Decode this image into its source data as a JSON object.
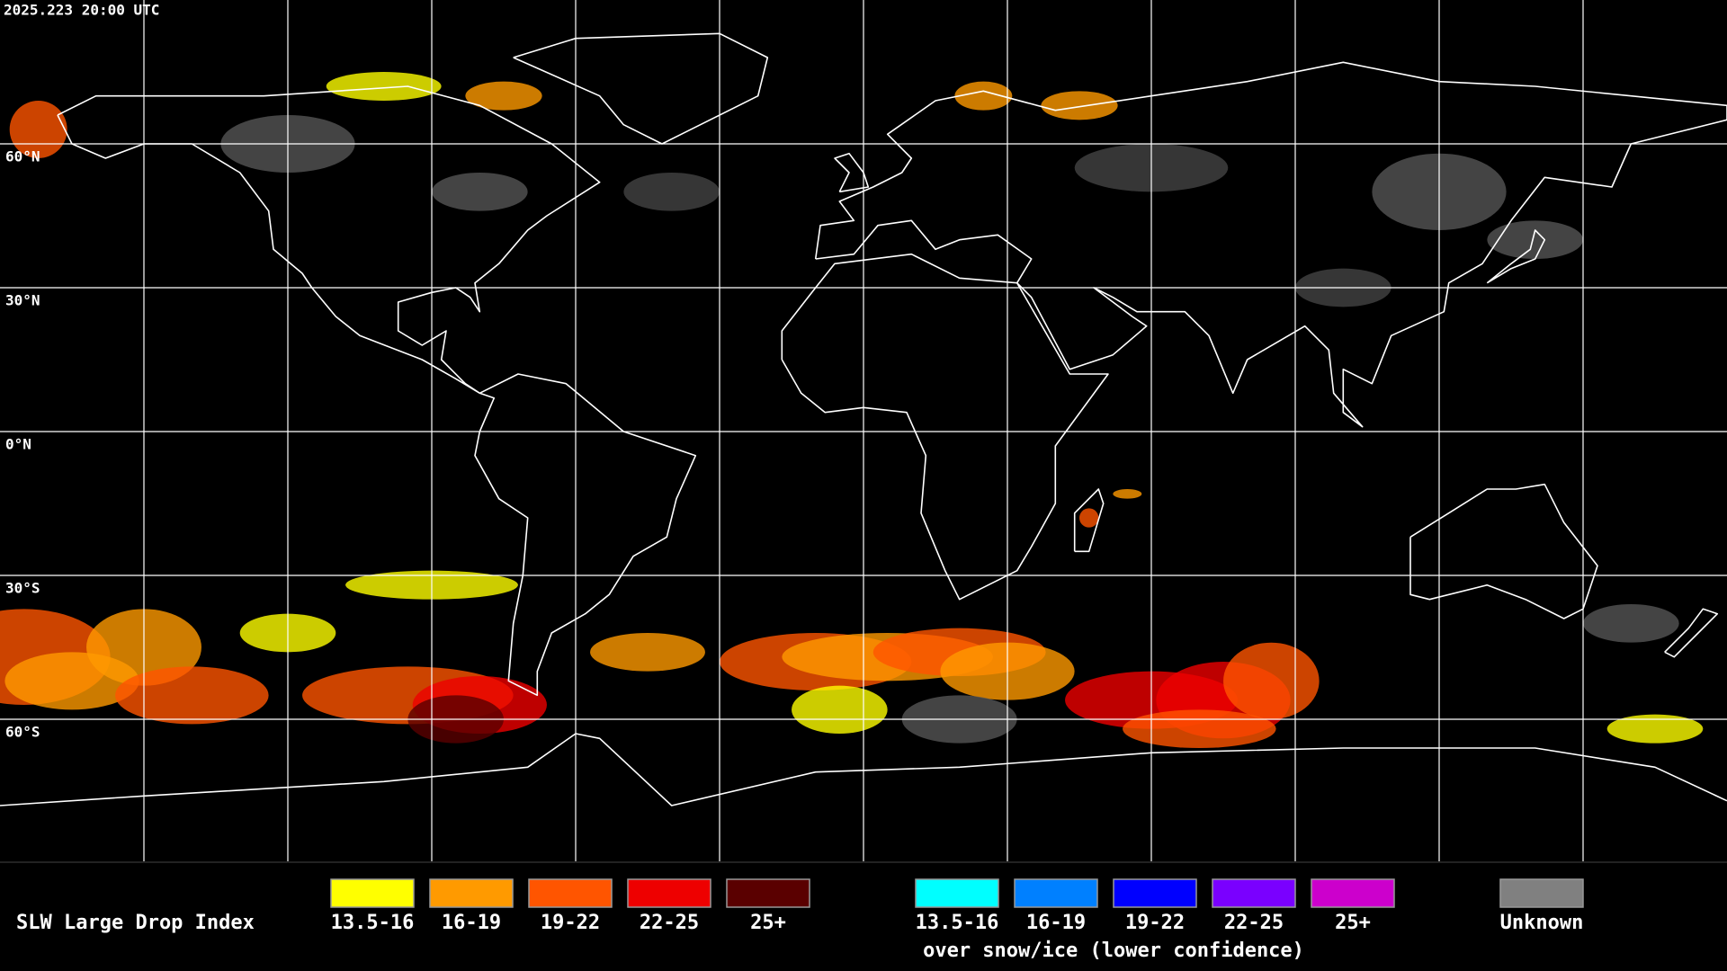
{
  "timestamp": "2025.223 20:00 UTC",
  "latitude_labels": [
    "60°N",
    "30°N",
    "0°N",
    "30°S",
    "60°S"
  ],
  "legend": {
    "title": "SLW Large Drop Index",
    "items": [
      {
        "label": "13.5-16",
        "color": "#ffff00"
      },
      {
        "label": "16-19",
        "color": "#ff9a00"
      },
      {
        "label": "19-22",
        "color": "#ff5500"
      },
      {
        "label": "22-25",
        "color": "#ee0000"
      },
      {
        "label": "25+",
        "color": "#5a0000"
      }
    ],
    "snow_ice_items": [
      {
        "label": "13.5-16",
        "color": "#00ffff"
      },
      {
        "label": "16-19",
        "color": "#0080ff"
      },
      {
        "label": "19-22",
        "color": "#0000ff"
      },
      {
        "label": "22-25",
        "color": "#7a00ff"
      },
      {
        "label": "25+",
        "color": "#cc00cc"
      }
    ],
    "snow_ice_caption": "over snow/ice (lower confidence)",
    "unknown": {
      "label": "Unknown",
      "color": "#808080"
    }
  }
}
